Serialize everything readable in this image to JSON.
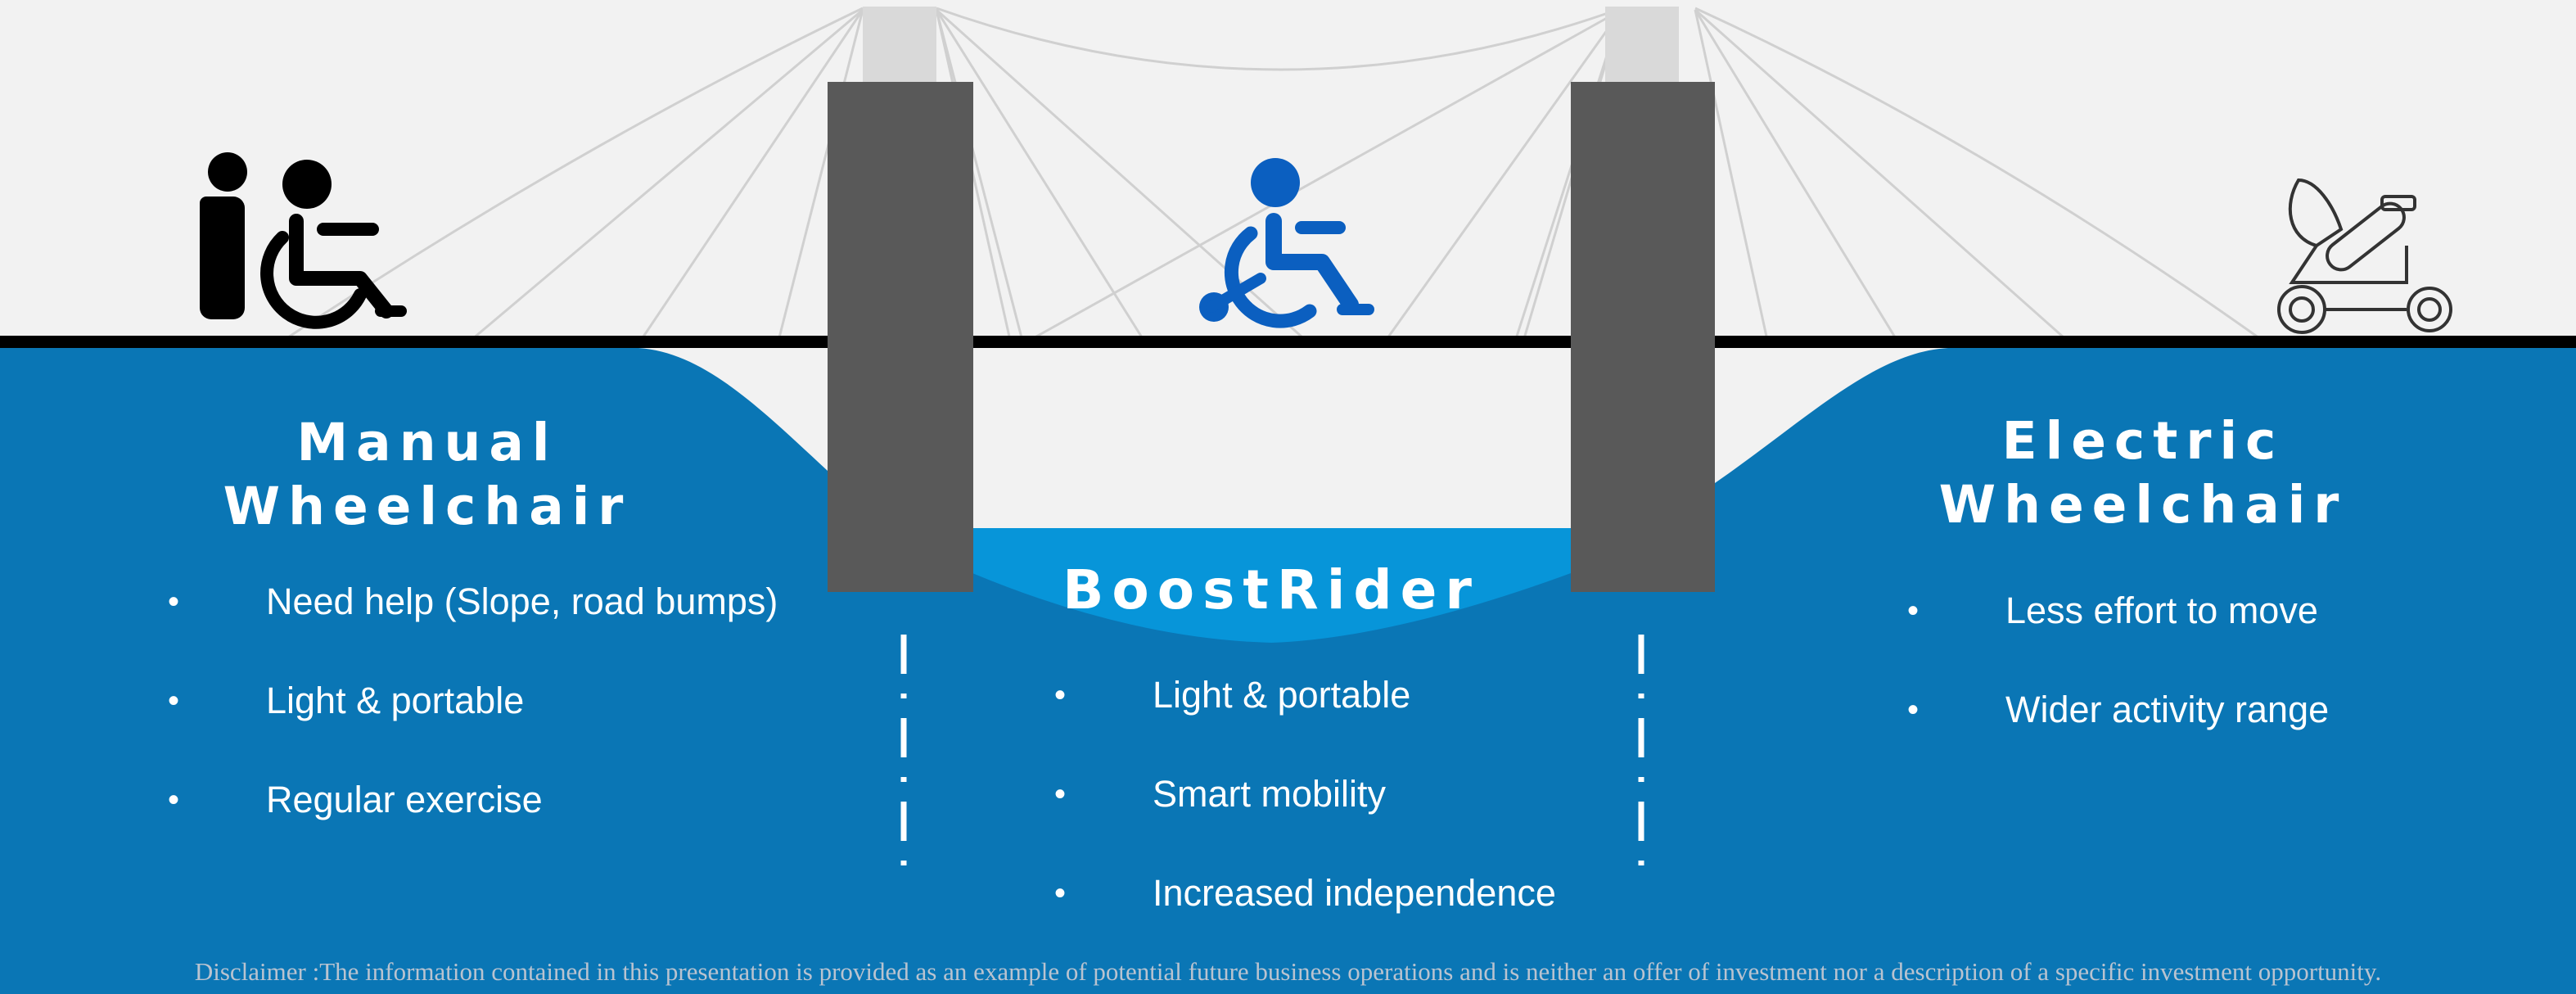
{
  "columns": {
    "manual": {
      "title_line1": "Manual",
      "title_line2": "Wheelchair",
      "icon": "person-pushing-wheelchair-icon",
      "bullets": [
        "Need help (Slope, road bumps)",
        "Light & portable",
        "Regular exercise"
      ]
    },
    "boostrider": {
      "title": "BoostRider",
      "icon": "wheelchair-icon",
      "bullets": [
        "Light & portable",
        "Smart mobility",
        "Increased independence"
      ]
    },
    "electric": {
      "title_line1": "Electric",
      "title_line2": "Wheelchair",
      "icon": "electric-wheelchair-icon",
      "bullets": [
        "Less effort to move",
        "Wider activity range"
      ]
    }
  },
  "disclaimer": "Disclaimer :The information contained in this presentation is provided as an example of potential future business operations and is neither an offer of investment nor a description of a specific investment opportunity.",
  "colors": {
    "background": "#f2f2f2",
    "water": "#0a76b5",
    "water_light": "#0795d9",
    "tower": "#595959",
    "tower_top": "#d9d9d9",
    "deck": "#000000",
    "cable": "#d0d0d0",
    "text": "#ffffff",
    "icon_blue": "#0b5fc0"
  }
}
